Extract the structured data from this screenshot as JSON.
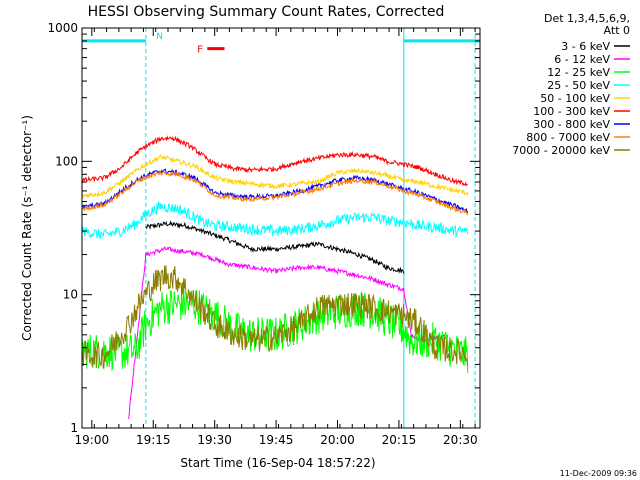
{
  "chart_data": {
    "type": "line",
    "title": "HESSI Observing Summary Count Rates, Corrected",
    "xlabel": "Start Time (16-Sep-04 18:57:22)",
    "ylabel": "Corrected Count Rate (s⁻¹ detector⁻¹)",
    "xlim": [
      18.96,
      20.58
    ],
    "ylim": [
      1,
      1000
    ],
    "yscale": "log",
    "grid": false,
    "legend": {
      "position": "right",
      "header": [
        "Det 1,3,4,5,6,9,",
        "Att 0"
      ]
    },
    "x_ticks": [
      {
        "value": 19.0,
        "label": "19:00"
      },
      {
        "value": 19.25,
        "label": "19:15"
      },
      {
        "value": 19.5,
        "label": "19:30"
      },
      {
        "value": 19.75,
        "label": "19:45"
      },
      {
        "value": 20.0,
        "label": "20:00"
      },
      {
        "value": 20.25,
        "label": "20:15"
      },
      {
        "value": 20.5,
        "label": "20:30"
      }
    ],
    "y_ticks": [
      {
        "value": 1,
        "label": "1"
      },
      {
        "value": 10,
        "label": "10"
      },
      {
        "value": 100,
        "label": "100"
      },
      {
        "value": 1000,
        "label": "1000"
      }
    ],
    "night_bars": {
      "color": "#00e5ee",
      "value": 800,
      "ranges": [
        [
          18.96,
          19.22
        ],
        [
          20.27,
          20.58
        ]
      ],
      "label": "N",
      "label_x": 19.25
    },
    "flare_bar": {
      "label": "F",
      "color": "#ff0000",
      "start": 19.47,
      "end": 19.54,
      "value": 700
    },
    "markers": [
      {
        "x": 19.22,
        "color": "#00e5ee",
        "style": "dashed"
      },
      {
        "x": 20.27,
        "color": "#00e5ee",
        "style": "solid"
      },
      {
        "x": 20.56,
        "color": "#00e5ee",
        "style": "dashed"
      }
    ],
    "series": [
      {
        "name": "3 - 6 keV",
        "color": "#000000",
        "start": 19.22,
        "end": 20.27,
        "points": [
          [
            19.22,
            32
          ],
          [
            19.3,
            34
          ],
          [
            19.38,
            33
          ],
          [
            19.45,
            30
          ],
          [
            19.55,
            26
          ],
          [
            19.65,
            22
          ],
          [
            19.75,
            22
          ],
          [
            19.85,
            23
          ],
          [
            19.92,
            24
          ],
          [
            20.0,
            22
          ],
          [
            20.08,
            20
          ],
          [
            20.15,
            18
          ],
          [
            20.2,
            16
          ],
          [
            20.27,
            15
          ]
        ]
      },
      {
        "name": "6 - 12 keV",
        "color": "#ff00ff",
        "start": 19.15,
        "end": 20.45,
        "points": [
          [
            19.15,
            1.2
          ],
          [
            19.22,
            20
          ],
          [
            19.3,
            22
          ],
          [
            19.38,
            21
          ],
          [
            19.45,
            20
          ],
          [
            19.55,
            17
          ],
          [
            19.65,
            16
          ],
          [
            19.75,
            15
          ],
          [
            19.85,
            16
          ],
          [
            19.92,
            16
          ],
          [
            20.0,
            15
          ],
          [
            20.08,
            14
          ],
          [
            20.15,
            13
          ],
          [
            20.2,
            12
          ],
          [
            20.27,
            11
          ],
          [
            20.3,
            5
          ],
          [
            20.35,
            4.5
          ],
          [
            20.4,
            4.8
          ],
          [
            20.45,
            4.8
          ]
        ]
      },
      {
        "name": "12 - 25 keV",
        "color": "#00ff00",
        "start": 18.96,
        "end": 20.53,
        "points": [
          [
            18.96,
            3.8
          ],
          [
            19.05,
            3.8
          ],
          [
            19.12,
            3.7
          ],
          [
            19.18,
            3.8
          ],
          [
            19.22,
            6
          ],
          [
            19.28,
            8
          ],
          [
            19.35,
            8.5
          ],
          [
            19.42,
            8.5
          ],
          [
            19.5,
            7
          ],
          [
            19.58,
            5.5
          ],
          [
            19.65,
            5
          ],
          [
            19.75,
            5
          ],
          [
            19.85,
            6
          ],
          [
            19.92,
            7
          ],
          [
            20.0,
            7.5
          ],
          [
            20.08,
            8
          ],
          [
            20.15,
            7.5
          ],
          [
            20.2,
            6.5
          ],
          [
            20.27,
            5.5
          ],
          [
            20.3,
            4.5
          ],
          [
            20.4,
            4.5
          ],
          [
            20.45,
            4
          ],
          [
            20.53,
            3.5
          ]
        ]
      },
      {
        "name": "25 - 50 keV",
        "color": "#00ffff",
        "start": 18.96,
        "end": 20.53,
        "points": [
          [
            18.96,
            30
          ],
          [
            19.05,
            28
          ],
          [
            19.12,
            30
          ],
          [
            19.18,
            34
          ],
          [
            19.22,
            40
          ],
          [
            19.28,
            46
          ],
          [
            19.35,
            44
          ],
          [
            19.4,
            40
          ],
          [
            19.45,
            35
          ],
          [
            19.5,
            33
          ],
          [
            19.58,
            32
          ],
          [
            19.65,
            31
          ],
          [
            19.75,
            30
          ],
          [
            19.85,
            31
          ],
          [
            19.92,
            33
          ],
          [
            20.0,
            36
          ],
          [
            20.08,
            38
          ],
          [
            20.15,
            38
          ],
          [
            20.2,
            36
          ],
          [
            20.27,
            35
          ],
          [
            20.33,
            33
          ],
          [
            20.4,
            32
          ],
          [
            20.48,
            30
          ],
          [
            20.53,
            30
          ]
        ]
      },
      {
        "name": "50 - 100 keV",
        "color": "#ffd200",
        "start": 18.96,
        "end": 20.53,
        "points": [
          [
            18.96,
            55
          ],
          [
            19.05,
            58
          ],
          [
            19.12,
            70
          ],
          [
            19.18,
            85
          ],
          [
            19.22,
            95
          ],
          [
            19.28,
            108
          ],
          [
            19.35,
            100
          ],
          [
            19.42,
            92
          ],
          [
            19.5,
            75
          ],
          [
            19.58,
            70
          ],
          [
            19.65,
            68
          ],
          [
            19.75,
            65
          ],
          [
            19.85,
            68
          ],
          [
            19.92,
            70
          ],
          [
            20.0,
            82
          ],
          [
            20.08,
            85
          ],
          [
            20.15,
            82
          ],
          [
            20.2,
            78
          ],
          [
            20.27,
            72
          ],
          [
            20.33,
            70
          ],
          [
            20.4,
            65
          ],
          [
            20.48,
            60
          ],
          [
            20.53,
            58
          ]
        ]
      },
      {
        "name": "100 - 300 keV",
        "color": "#ff0000",
        "start": 18.96,
        "end": 20.53,
        "points": [
          [
            18.96,
            72
          ],
          [
            19.05,
            75
          ],
          [
            19.12,
            90
          ],
          [
            19.18,
            115
          ],
          [
            19.22,
            130
          ],
          [
            19.28,
            148
          ],
          [
            19.33,
            150
          ],
          [
            19.4,
            130
          ],
          [
            19.5,
            95
          ],
          [
            19.58,
            88
          ],
          [
            19.65,
            86
          ],
          [
            19.75,
            88
          ],
          [
            19.85,
            100
          ],
          [
            19.92,
            105
          ],
          [
            20.0,
            112
          ],
          [
            20.08,
            112
          ],
          [
            20.15,
            108
          ],
          [
            20.2,
            100
          ],
          [
            20.27,
            95
          ],
          [
            20.33,
            90
          ],
          [
            20.4,
            80
          ],
          [
            20.48,
            70
          ],
          [
            20.53,
            68
          ]
        ]
      },
      {
        "name": "300 - 800 keV",
        "color": "#0000ff",
        "start": 18.96,
        "end": 20.53,
        "points": [
          [
            18.96,
            45
          ],
          [
            19.05,
            48
          ],
          [
            19.12,
            60
          ],
          [
            19.18,
            72
          ],
          [
            19.22,
            78
          ],
          [
            19.28,
            85
          ],
          [
            19.35,
            82
          ],
          [
            19.42,
            75
          ],
          [
            19.5,
            58
          ],
          [
            19.58,
            55
          ],
          [
            19.65,
            54
          ],
          [
            19.75,
            55
          ],
          [
            19.85,
            60
          ],
          [
            19.92,
            65
          ],
          [
            20.0,
            72
          ],
          [
            20.08,
            75
          ],
          [
            20.15,
            72
          ],
          [
            20.2,
            68
          ],
          [
            20.27,
            62
          ],
          [
            20.33,
            58
          ],
          [
            20.4,
            52
          ],
          [
            20.48,
            46
          ],
          [
            20.53,
            42
          ]
        ]
      },
      {
        "name": "800 - 7000 keV",
        "color": "#ff8000",
        "start": 18.96,
        "end": 20.53,
        "points": [
          [
            18.96,
            44
          ],
          [
            19.05,
            47
          ],
          [
            19.12,
            58
          ],
          [
            19.18,
            70
          ],
          [
            19.22,
            76
          ],
          [
            19.28,
            82
          ],
          [
            19.35,
            80
          ],
          [
            19.42,
            72
          ],
          [
            19.5,
            56
          ],
          [
            19.58,
            53
          ],
          [
            19.65,
            52
          ],
          [
            19.75,
            54
          ],
          [
            19.85,
            58
          ],
          [
            19.92,
            62
          ],
          [
            20.0,
            68
          ],
          [
            20.08,
            72
          ],
          [
            20.15,
            70
          ],
          [
            20.2,
            66
          ],
          [
            20.27,
            60
          ],
          [
            20.33,
            56
          ],
          [
            20.4,
            50
          ],
          [
            20.48,
            44
          ],
          [
            20.53,
            41
          ]
        ]
      },
      {
        "name": "7000 - 20000 keV",
        "color": "#8b7d00",
        "start": 18.96,
        "end": 20.53,
        "points": [
          [
            18.96,
            3.6
          ],
          [
            19.05,
            3.5
          ],
          [
            19.1,
            4.5
          ],
          [
            19.15,
            6
          ],
          [
            19.2,
            9
          ],
          [
            19.25,
            12
          ],
          [
            19.3,
            14
          ],
          [
            19.35,
            13
          ],
          [
            19.42,
            9
          ],
          [
            19.5,
            6
          ],
          [
            19.58,
            5
          ],
          [
            19.65,
            4.5
          ],
          [
            19.75,
            4.8
          ],
          [
            19.85,
            6
          ],
          [
            19.92,
            8
          ],
          [
            20.0,
            8.5
          ],
          [
            20.08,
            8.5
          ],
          [
            20.15,
            8
          ],
          [
            20.2,
            7.5
          ],
          [
            20.27,
            7
          ],
          [
            20.33,
            6
          ],
          [
            20.4,
            4
          ],
          [
            20.48,
            3.8
          ],
          [
            20.53,
            3.6
          ]
        ]
      }
    ],
    "footer_timestamp": "11-Dec-2009 09:36"
  }
}
